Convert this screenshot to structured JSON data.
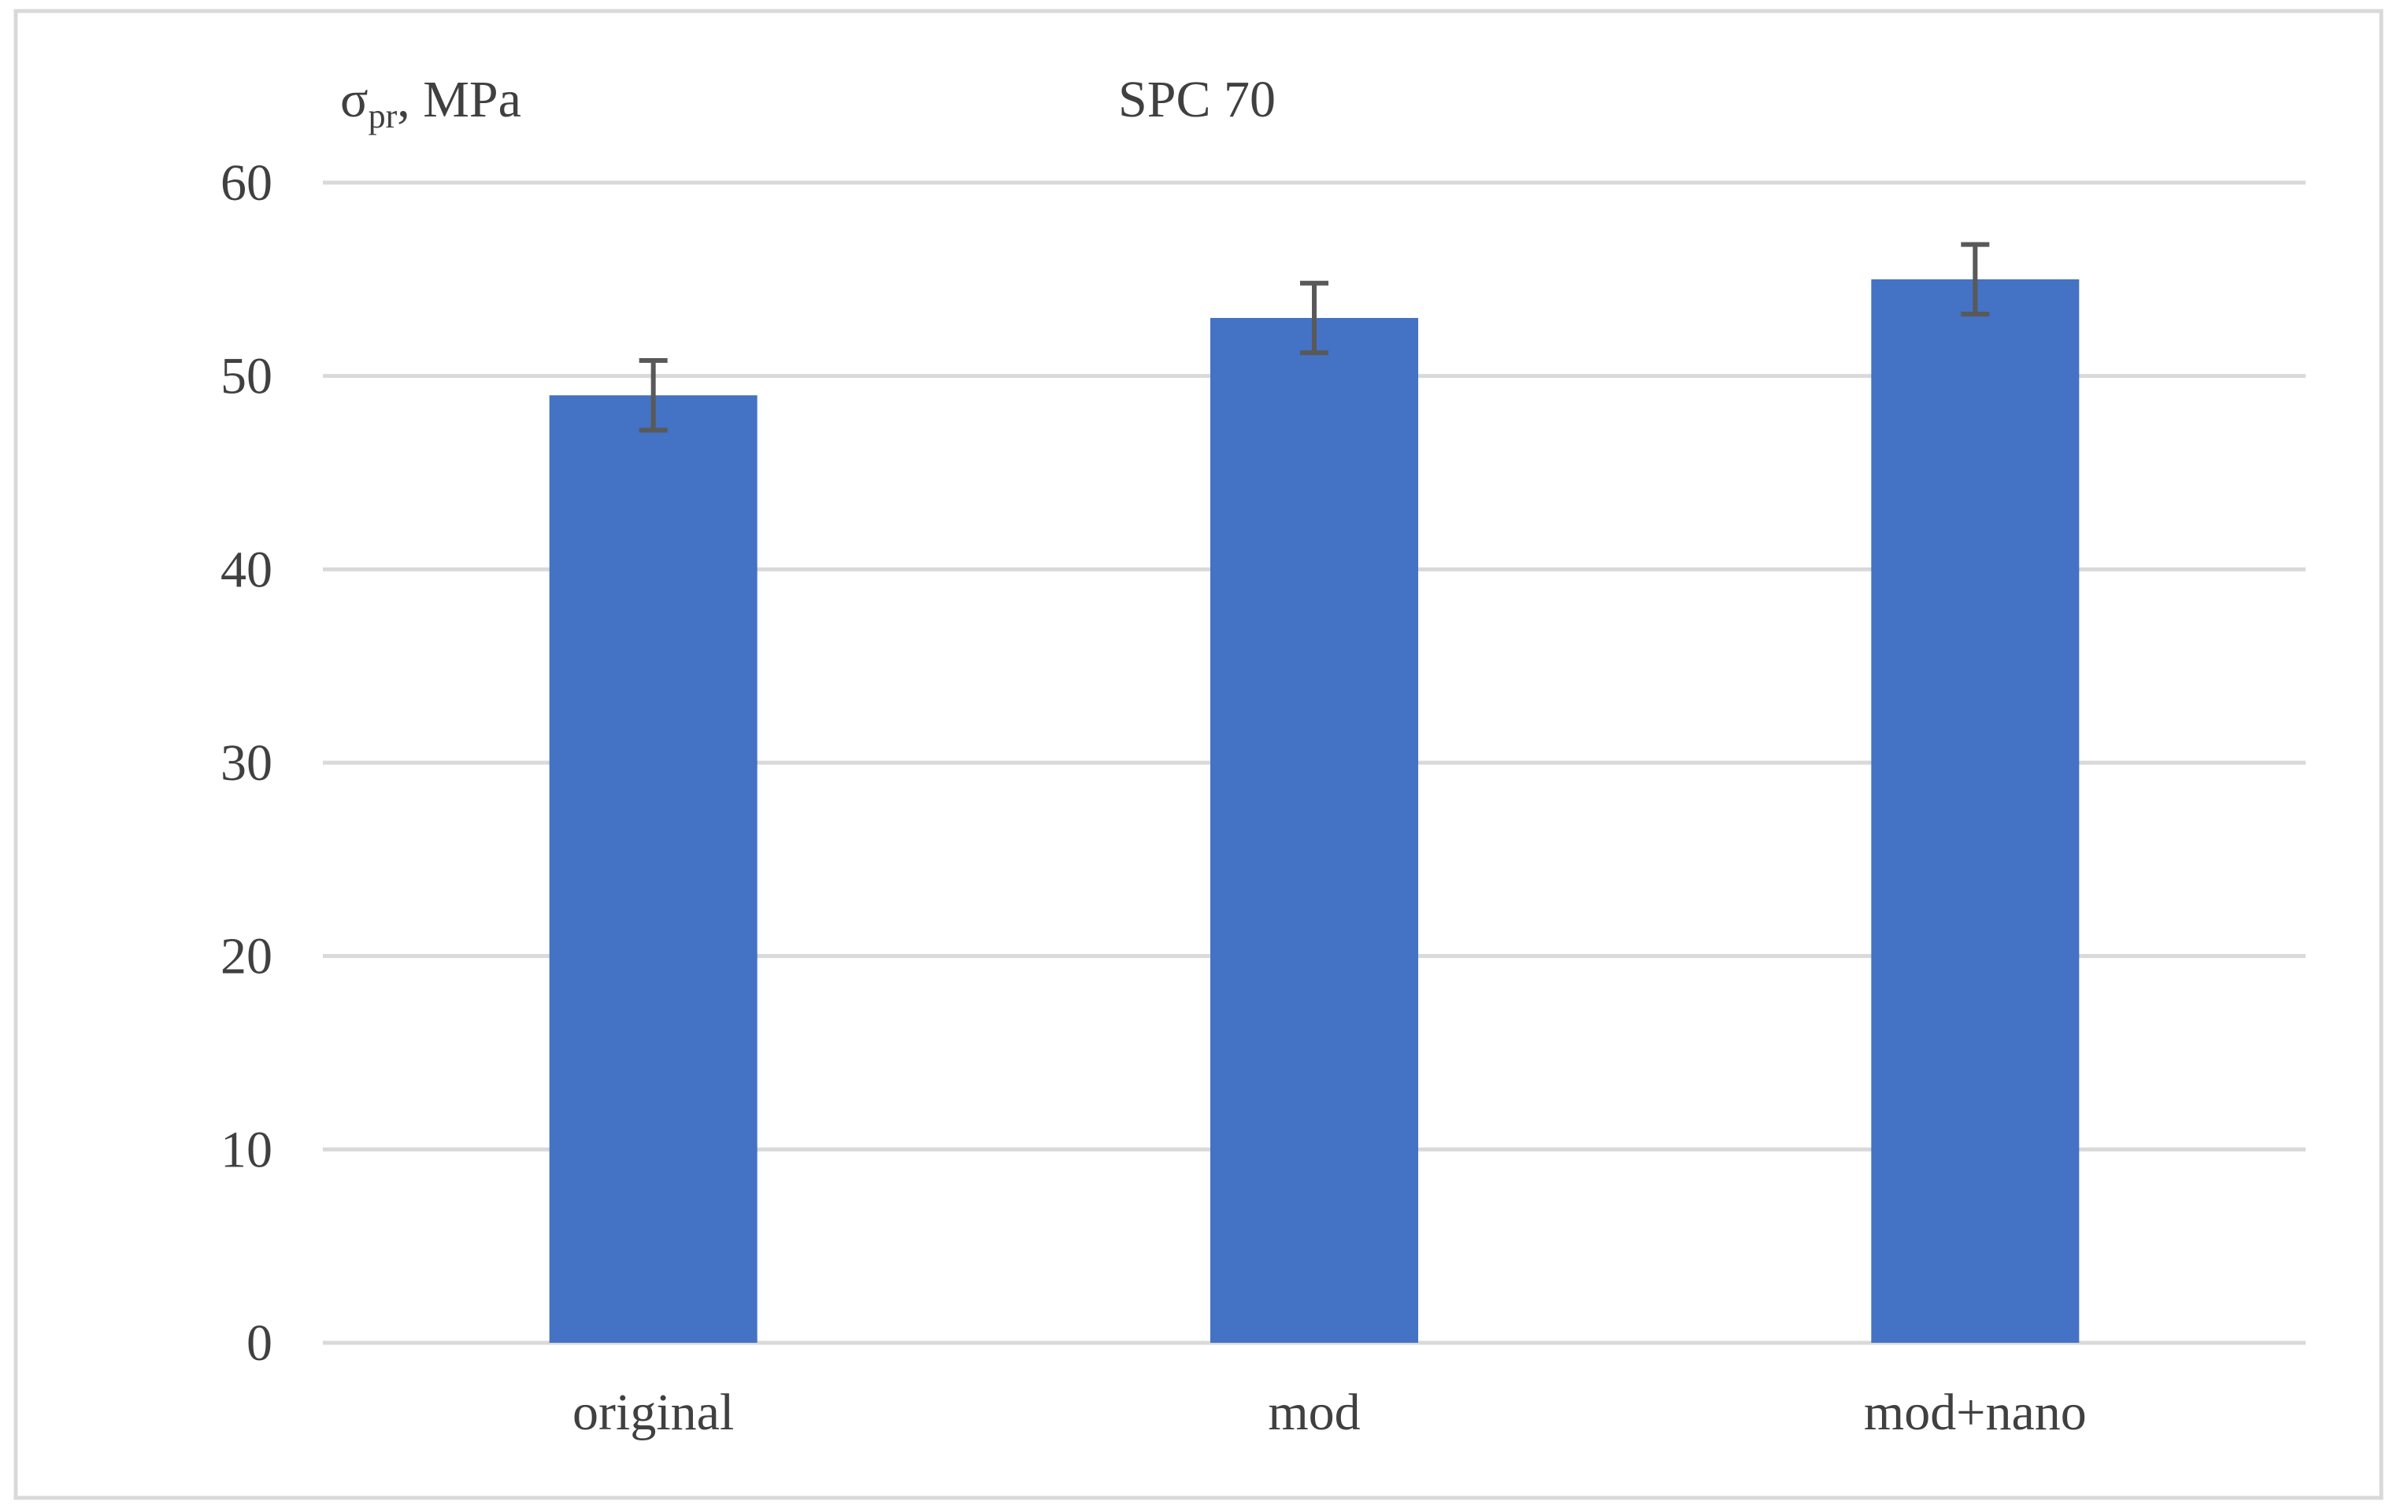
{
  "chart_data": {
    "type": "bar",
    "title": "SPC 70",
    "ylabel": {
      "main": "σ",
      "subscript": "pr",
      "suffix": ", MPa"
    },
    "xlabel": "",
    "categories": [
      "original",
      "mod",
      "mod+nano"
    ],
    "values": [
      49,
      53,
      55
    ],
    "error": [
      1.8,
      1.8,
      1.8
    ],
    "ylim": [
      0,
      60
    ],
    "yticks": [
      "0",
      "10",
      "20",
      "30",
      "40",
      "50",
      "60"
    ],
    "grid": true,
    "legend": "none",
    "colors": {
      "bar": "#4472C4",
      "gridline": "#D9D9D9",
      "error_bar": "#595959",
      "text": "#404040",
      "frame": "#D9D9D9"
    }
  }
}
